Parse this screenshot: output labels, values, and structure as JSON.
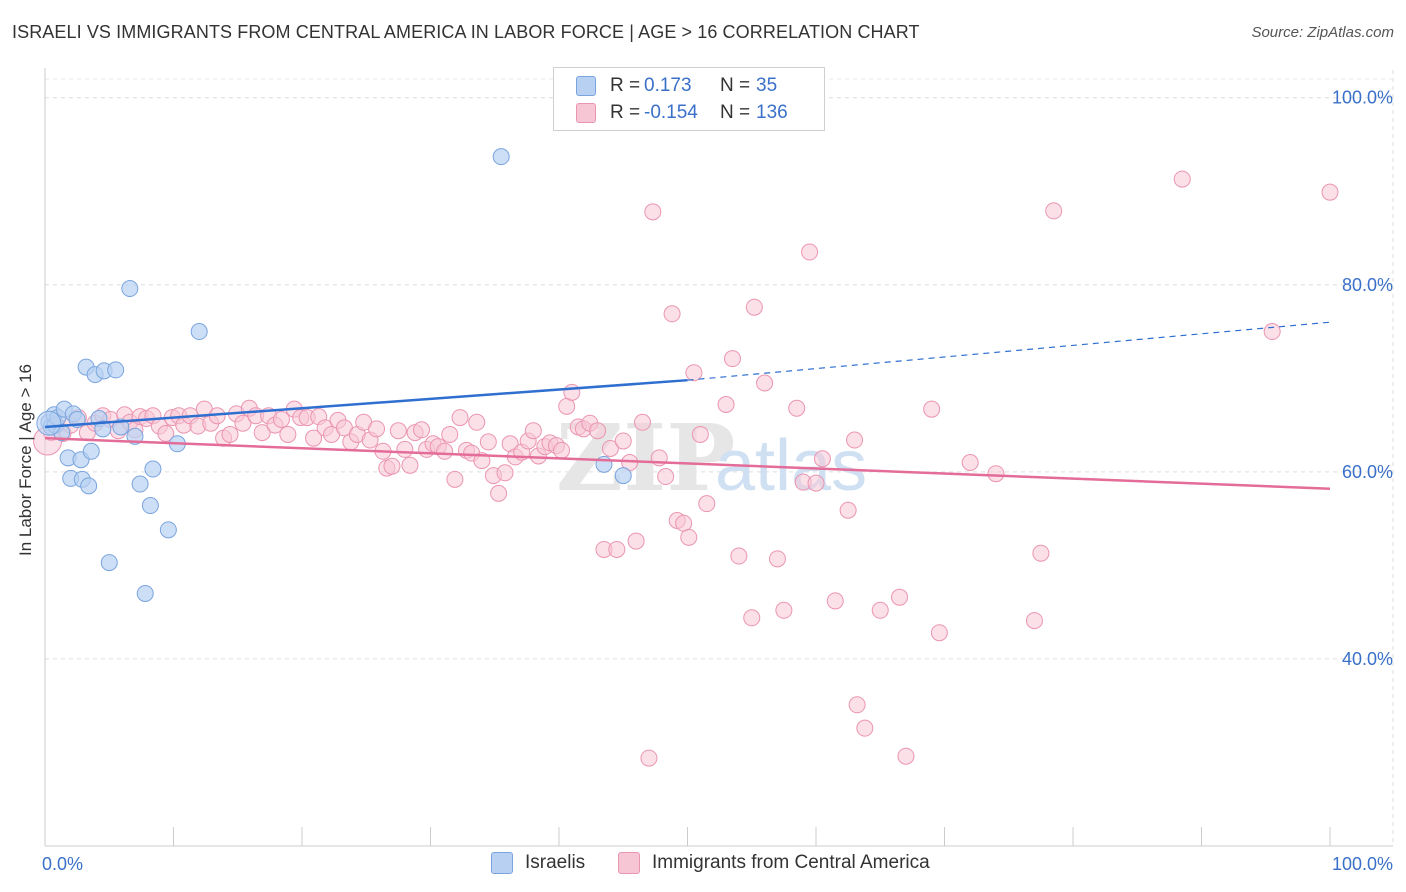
{
  "title": "ISRAELI VS IMMIGRANTS FROM CENTRAL AMERICA IN LABOR FORCE | AGE > 16 CORRELATION CHART",
  "source": "Source: ZipAtlas.com",
  "watermark": {
    "zip": "ZIP",
    "atlas": "atlas"
  },
  "legend": {
    "rows": [
      {
        "r_label": "R =",
        "r_value": "0.173",
        "n_label": "N =",
        "n_value": "35"
      },
      {
        "r_label": "R =",
        "r_value": "-0.154",
        "n_label": "N =",
        "n_value": "136"
      }
    ]
  },
  "bottom_legend": [
    "Israelis",
    "Immigrants from Central America"
  ],
  "colors": {
    "blue_fill": "#b8d1f2",
    "blue_stroke": "#7aa4de",
    "blue_line": "#2f6fd0",
    "pink_fill": "#f7c6d5",
    "pink_stroke": "#eb95b1",
    "pink_line": "#e46c98",
    "axis_text": "#3a70c9",
    "grid": "#dddddd"
  },
  "chart_data": {
    "type": "scatter",
    "title": "ISRAELI VS IMMIGRANTS FROM CENTRAL AMERICA IN LABOR FORCE | AGE > 16 CORRELATION CHART",
    "xlabel": "",
    "ylabel": "In Labor Force | Age > 16",
    "xlim": [
      0,
      100
    ],
    "ylim": [
      20,
      102
    ],
    "x_tick_labels": [
      {
        "value": 0,
        "label": "0.0%"
      },
      {
        "value": 100,
        "label": "100.0%"
      }
    ],
    "y_tick_labels": [
      {
        "value": 40,
        "label": "40.0%"
      },
      {
        "value": 60,
        "label": "60.0%"
      },
      {
        "value": 80,
        "label": "80.0%"
      },
      {
        "value": 100,
        "label": "100.0%"
      }
    ],
    "grid": true,
    "series": [
      {
        "name": "Israelis",
        "r": 0.173,
        "n": 35,
        "trend": {
          "x0": 0,
          "y0": 64.8,
          "x1": 50,
          "y1": 69.8,
          "dash_to_x": 100,
          "dash_to_y": 76
        },
        "points": [
          [
            0.3,
            65.3
          ],
          [
            0.5,
            64.8
          ],
          [
            0.7,
            66.1
          ],
          [
            0.8,
            65.0
          ],
          [
            1.0,
            65.8
          ],
          [
            1.3,
            64.2
          ],
          [
            1.5,
            66.7
          ],
          [
            1.8,
            61.5
          ],
          [
            2.0,
            59.3
          ],
          [
            2.2,
            66.2
          ],
          [
            2.5,
            65.6
          ],
          [
            2.8,
            61.3
          ],
          [
            2.9,
            59.2
          ],
          [
            3.2,
            71.2
          ],
          [
            3.4,
            58.5
          ],
          [
            3.6,
            62.2
          ],
          [
            3.9,
            70.4
          ],
          [
            4.2,
            65.7
          ],
          [
            4.5,
            64.6
          ],
          [
            4.6,
            70.8
          ],
          [
            5.0,
            50.3
          ],
          [
            5.5,
            70.9
          ],
          [
            5.9,
            64.8
          ],
          [
            6.6,
            79.6
          ],
          [
            7.0,
            63.8
          ],
          [
            7.4,
            58.7
          ],
          [
            7.8,
            47.0
          ],
          [
            8.2,
            56.4
          ],
          [
            8.4,
            60.3
          ],
          [
            9.6,
            53.8
          ],
          [
            10.3,
            63.0
          ],
          [
            12.0,
            75.0
          ],
          [
            35.5,
            93.7
          ],
          [
            43.5,
            60.8
          ],
          [
            45.0,
            59.6
          ]
        ]
      },
      {
        "name": "Immigrants from Central America",
        "r": -0.154,
        "n": 136,
        "trend": {
          "x0": 0,
          "y0": 63.6,
          "x1": 100,
          "y1": 58.2
        },
        "points": [
          [
            0.5,
            64.2
          ],
          [
            0.9,
            65.0
          ],
          [
            1.4,
            64.1
          ],
          [
            2.0,
            65.0
          ],
          [
            2.6,
            65.8
          ],
          [
            3.3,
            64.2
          ],
          [
            3.9,
            65.2
          ],
          [
            4.5,
            66.0
          ],
          [
            5.1,
            65.6
          ],
          [
            5.7,
            64.4
          ],
          [
            6.2,
            66.1
          ],
          [
            6.6,
            65.3
          ],
          [
            7.0,
            64.5
          ],
          [
            7.4,
            65.9
          ],
          [
            7.9,
            65.7
          ],
          [
            8.4,
            66.0
          ],
          [
            8.9,
            64.9
          ],
          [
            9.4,
            64.1
          ],
          [
            9.9,
            65.8
          ],
          [
            10.4,
            66.0
          ],
          [
            10.8,
            65.0
          ],
          [
            11.3,
            66.0
          ],
          [
            11.9,
            64.9
          ],
          [
            12.4,
            66.7
          ],
          [
            12.9,
            65.2
          ],
          [
            13.4,
            66.0
          ],
          [
            13.9,
            63.6
          ],
          [
            14.4,
            64.0
          ],
          [
            14.9,
            66.2
          ],
          [
            15.4,
            65.2
          ],
          [
            15.9,
            66.8
          ],
          [
            16.4,
            66.0
          ],
          [
            16.9,
            64.2
          ],
          [
            17.4,
            66.0
          ],
          [
            17.9,
            65.0
          ],
          [
            18.4,
            65.6
          ],
          [
            18.9,
            64.0
          ],
          [
            19.4,
            66.7
          ],
          [
            19.9,
            65.8
          ],
          [
            20.4,
            65.8
          ],
          [
            20.9,
            63.6
          ],
          [
            21.3,
            65.9
          ],
          [
            21.8,
            64.7
          ],
          [
            22.3,
            64.0
          ],
          [
            22.8,
            65.5
          ],
          [
            23.3,
            64.7
          ],
          [
            23.8,
            63.2
          ],
          [
            24.3,
            64.0
          ],
          [
            24.8,
            65.3
          ],
          [
            25.3,
            63.4
          ],
          [
            25.8,
            64.6
          ],
          [
            26.3,
            62.2
          ],
          [
            26.6,
            60.4
          ],
          [
            27.0,
            60.6
          ],
          [
            27.5,
            64.4
          ],
          [
            28.0,
            62.4
          ],
          [
            28.4,
            60.7
          ],
          [
            28.8,
            64.2
          ],
          [
            29.3,
            64.5
          ],
          [
            29.7,
            62.4
          ],
          [
            30.2,
            63.0
          ],
          [
            30.6,
            62.7
          ],
          [
            31.1,
            62.2
          ],
          [
            31.5,
            64.0
          ],
          [
            31.9,
            59.2
          ],
          [
            32.3,
            65.8
          ],
          [
            32.8,
            62.3
          ],
          [
            33.2,
            62.0
          ],
          [
            33.6,
            65.3
          ],
          [
            34.0,
            61.2
          ],
          [
            34.5,
            63.2
          ],
          [
            34.9,
            59.6
          ],
          [
            35.3,
            57.7
          ],
          [
            35.8,
            59.9
          ],
          [
            36.2,
            63.0
          ],
          [
            36.6,
            61.6
          ],
          [
            37.1,
            62.1
          ],
          [
            37.6,
            63.3
          ],
          [
            38.0,
            64.4
          ],
          [
            38.4,
            61.7
          ],
          [
            38.9,
            62.7
          ],
          [
            39.3,
            63.1
          ],
          [
            39.8,
            62.8
          ],
          [
            40.2,
            62.3
          ],
          [
            40.6,
            67.0
          ],
          [
            41.0,
            68.5
          ],
          [
            41.5,
            64.8
          ],
          [
            41.9,
            64.6
          ],
          [
            42.4,
            65.2
          ],
          [
            43.0,
            64.4
          ],
          [
            43.5,
            51.7
          ],
          [
            44.0,
            62.5
          ],
          [
            44.5,
            51.7
          ],
          [
            45.0,
            63.3
          ],
          [
            45.5,
            61.0
          ],
          [
            46.0,
            52.6
          ],
          [
            46.5,
            65.3
          ],
          [
            47.0,
            29.4
          ],
          [
            47.3,
            87.8
          ],
          [
            47.8,
            61.5
          ],
          [
            48.3,
            59.5
          ],
          [
            48.8,
            76.9
          ],
          [
            49.2,
            54.8
          ],
          [
            49.7,
            54.5
          ],
          [
            50.1,
            53.0
          ],
          [
            50.5,
            70.6
          ],
          [
            51.0,
            64.0
          ],
          [
            51.5,
            56.6
          ],
          [
            53.0,
            67.2
          ],
          [
            53.5,
            72.1
          ],
          [
            54.0,
            51.0
          ],
          [
            55.0,
            44.4
          ],
          [
            55.2,
            77.6
          ],
          [
            56.0,
            69.5
          ],
          [
            57.0,
            50.7
          ],
          [
            57.5,
            45.2
          ],
          [
            58.5,
            66.8
          ],
          [
            59.0,
            58.9
          ],
          [
            59.5,
            83.5
          ],
          [
            60.0,
            58.8
          ],
          [
            60.5,
            61.4
          ],
          [
            61.5,
            46.2
          ],
          [
            62.5,
            55.9
          ],
          [
            63.0,
            63.4
          ],
          [
            63.2,
            35.1
          ],
          [
            63.8,
            32.6
          ],
          [
            65.0,
            45.2
          ],
          [
            66.5,
            46.6
          ],
          [
            67.0,
            29.6
          ],
          [
            69.0,
            66.7
          ],
          [
            69.6,
            42.8
          ],
          [
            72.0,
            61.0
          ],
          [
            74.0,
            59.8
          ],
          [
            77.0,
            44.1
          ],
          [
            77.5,
            51.3
          ],
          [
            78.5,
            87.9
          ],
          [
            88.5,
            91.3
          ],
          [
            95.5,
            75.0
          ],
          [
            100.0,
            89.9
          ]
        ]
      }
    ]
  }
}
